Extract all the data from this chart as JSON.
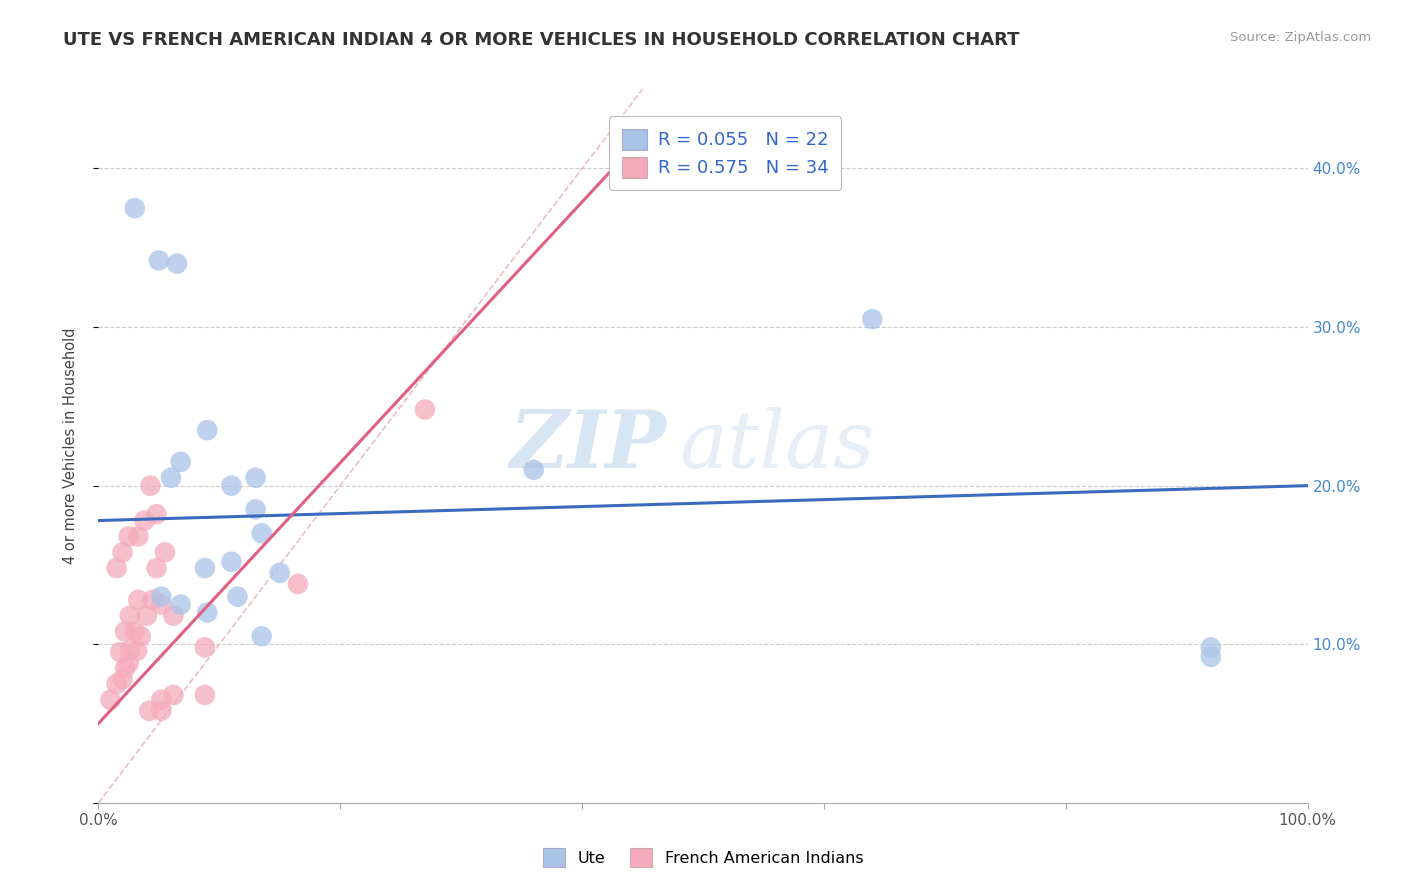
{
  "title": "UTE VS FRENCH AMERICAN INDIAN 4 OR MORE VEHICLES IN HOUSEHOLD CORRELATION CHART",
  "source_text": "Source: ZipAtlas.com",
  "ylabel": "4 or more Vehicles in Household",
  "xlim": [
    0,
    1.0
  ],
  "ylim": [
    0,
    0.45
  ],
  "xticks": [
    0.0,
    0.2,
    0.4,
    0.6,
    0.8,
    1.0
  ],
  "xtick_labels": [
    "0.0%",
    "",
    "",
    "",
    "",
    "100.0%"
  ],
  "yticks": [
    0.0,
    0.1,
    0.2,
    0.3,
    0.4
  ],
  "ytick_right_labels": [
    "",
    "10.0%",
    "20.0%",
    "30.0%",
    "40.0%"
  ],
  "ute_R": 0.055,
  "ute_N": 22,
  "fai_R": 0.575,
  "fai_N": 34,
  "watermark_zip": "ZIP",
  "watermark_atlas": "atlas",
  "background_color": "#ffffff",
  "grid_color": "#cccccc",
  "ute_color": "#aac4e8",
  "ute_line_color": "#3a6bbf",
  "fai_color": "#f4aabc",
  "fai_line_color": "#e06080",
  "diagonal_color": "#e8c0c0",
  "ute_scatter_x": [
    0.03,
    0.05,
    0.065,
    0.06,
    0.068,
    0.09,
    0.11,
    0.13,
    0.088,
    0.11,
    0.052,
    0.068,
    0.115,
    0.13,
    0.15,
    0.09,
    0.135,
    0.36,
    0.64,
    0.92,
    0.92,
    0.135
  ],
  "ute_scatter_y": [
    0.375,
    0.342,
    0.34,
    0.205,
    0.215,
    0.235,
    0.2,
    0.205,
    0.148,
    0.152,
    0.13,
    0.125,
    0.13,
    0.185,
    0.145,
    0.12,
    0.105,
    0.21,
    0.305,
    0.098,
    0.092,
    0.17
  ],
  "fai_scatter_x": [
    0.01,
    0.015,
    0.02,
    0.022,
    0.025,
    0.018,
    0.026,
    0.032,
    0.035,
    0.022,
    0.03,
    0.04,
    0.026,
    0.033,
    0.045,
    0.048,
    0.052,
    0.015,
    0.02,
    0.025,
    0.033,
    0.038,
    0.048,
    0.052,
    0.062,
    0.042,
    0.052,
    0.062,
    0.088,
    0.165,
    0.27,
    0.043,
    0.055,
    0.088
  ],
  "fai_scatter_y": [
    0.065,
    0.075,
    0.078,
    0.085,
    0.088,
    0.095,
    0.096,
    0.096,
    0.105,
    0.108,
    0.108,
    0.118,
    0.118,
    0.128,
    0.128,
    0.148,
    0.065,
    0.148,
    0.158,
    0.168,
    0.168,
    0.178,
    0.182,
    0.125,
    0.118,
    0.058,
    0.058,
    0.068,
    0.068,
    0.138,
    0.248,
    0.2,
    0.158,
    0.098
  ],
  "ute_line_x": [
    0.0,
    1.0
  ],
  "ute_line_y": [
    0.178,
    0.2
  ],
  "fai_line_x": [
    0.0,
    0.45
  ],
  "fai_line_y": [
    0.05,
    0.42
  ]
}
